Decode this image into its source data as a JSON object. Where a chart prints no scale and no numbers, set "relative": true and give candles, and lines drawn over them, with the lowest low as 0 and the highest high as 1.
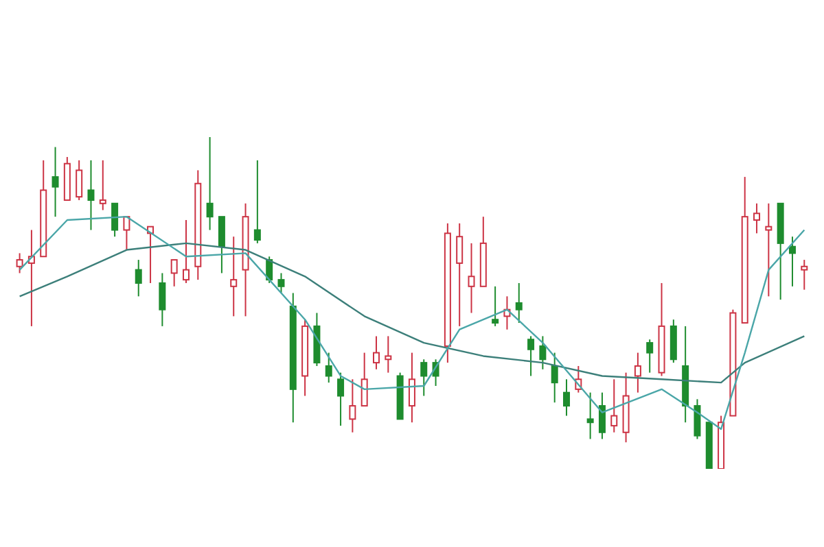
{
  "chart_data": {
    "type": "candlestick",
    "relative": true,
    "categories": [
      null,
      null,
      null,
      null,
      null,
      null,
      null,
      null,
      null,
      null,
      null,
      null,
      null,
      null,
      null,
      null,
      null,
      null,
      null,
      null,
      null,
      null,
      null,
      null,
      null,
      null,
      null,
      null,
      null,
      null,
      null,
      null,
      null,
      null,
      null,
      null,
      null,
      null,
      null,
      null,
      null,
      null,
      null,
      null,
      null,
      null,
      null,
      null,
      null,
      null,
      null,
      null,
      null,
      null,
      null,
      null,
      null,
      null,
      null,
      null,
      null,
      null,
      null,
      null,
      null,
      null,
      null
    ],
    "ohlc": [
      [
        0.61,
        0.65,
        0.59,
        0.63
      ],
      [
        0.62,
        0.72,
        0.43,
        0.64
      ],
      [
        0.64,
        0.93,
        0.64,
        0.84
      ],
      [
        0.88,
        0.97,
        0.76,
        0.85
      ],
      [
        0.81,
        0.94,
        0.81,
        0.92
      ],
      [
        0.82,
        0.93,
        0.81,
        0.9
      ],
      [
        0.84,
        0.93,
        0.72,
        0.81
      ],
      [
        0.8,
        0.93,
        0.78,
        0.81
      ],
      [
        0.8,
        0.8,
        0.7,
        0.72
      ],
      [
        0.72,
        0.76,
        0.66,
        0.76
      ],
      [
        0.6,
        0.63,
        0.52,
        0.56
      ],
      [
        0.71,
        0.73,
        0.56,
        0.73
      ],
      [
        0.56,
        0.59,
        0.43,
        0.48
      ],
      [
        0.59,
        0.63,
        0.55,
        0.63
      ],
      [
        0.57,
        0.75,
        0.56,
        0.6
      ],
      [
        0.61,
        0.9,
        0.57,
        0.86
      ],
      [
        0.8,
        1.0,
        0.72,
        0.76
      ],
      [
        0.76,
        0.76,
        0.59,
        0.67
      ],
      [
        0.55,
        0.7,
        0.46,
        0.57
      ],
      [
        0.6,
        0.8,
        0.46,
        0.76
      ],
      [
        0.72,
        0.93,
        0.68,
        0.69
      ],
      [
        0.63,
        0.64,
        0.56,
        0.57
      ],
      [
        0.57,
        0.59,
        0.53,
        0.55
      ],
      [
        0.49,
        0.53,
        0.14,
        0.24
      ],
      [
        0.28,
        0.45,
        0.22,
        0.43
      ],
      [
        0.43,
        0.47,
        0.31,
        0.32
      ],
      [
        0.31,
        0.35,
        0.26,
        0.28
      ],
      [
        0.27,
        0.29,
        0.13,
        0.22
      ],
      [
        0.15,
        0.27,
        0.11,
        0.19
      ],
      [
        0.19,
        0.35,
        0.19,
        0.27
      ],
      [
        0.32,
        0.4,
        0.3,
        0.35
      ],
      [
        0.33,
        0.4,
        0.29,
        0.34
      ],
      [
        0.28,
        0.29,
        0.15,
        0.15
      ],
      [
        0.19,
        0.35,
        0.14,
        0.27
      ],
      [
        0.32,
        0.33,
        0.22,
        0.28
      ],
      [
        0.32,
        0.33,
        0.25,
        0.28
      ],
      [
        0.37,
        0.74,
        0.32,
        0.71
      ],
      [
        0.62,
        0.74,
        0.43,
        0.7
      ],
      [
        0.55,
        0.68,
        0.47,
        0.58
      ],
      [
        0.55,
        0.76,
        0.55,
        0.68
      ],
      [
        0.45,
        0.55,
        0.43,
        0.44
      ],
      [
        0.46,
        0.52,
        0.42,
        0.48
      ],
      [
        0.5,
        0.56,
        0.44,
        0.48
      ],
      [
        0.39,
        0.4,
        0.28,
        0.36
      ],
      [
        0.37,
        0.4,
        0.3,
        0.33
      ],
      [
        0.31,
        0.35,
        0.2,
        0.26
      ],
      [
        0.23,
        0.27,
        0.16,
        0.19
      ],
      [
        0.24,
        0.31,
        0.23,
        0.27
      ],
      [
        0.15,
        0.23,
        0.09,
        0.14
      ],
      [
        0.19,
        0.23,
        0.09,
        0.11
      ],
      [
        0.13,
        0.27,
        0.11,
        0.16
      ],
      [
        0.11,
        0.29,
        0.08,
        0.22
      ],
      [
        0.28,
        0.35,
        0.23,
        0.31
      ],
      [
        0.38,
        0.39,
        0.29,
        0.35
      ],
      [
        0.29,
        0.56,
        0.28,
        0.43
      ],
      [
        0.43,
        0.45,
        0.32,
        0.33
      ],
      [
        0.31,
        0.43,
        0.14,
        0.19
      ],
      [
        0.19,
        0.21,
        0.09,
        0.1
      ],
      [
        0.14,
        0.14,
        0.0,
        0.0
      ],
      [
        0.0,
        0.16,
        0.0,
        0.14
      ],
      [
        0.16,
        0.48,
        0.16,
        0.47
      ],
      [
        0.44,
        0.88,
        0.44,
        0.76
      ],
      [
        0.75,
        0.8,
        0.71,
        0.77
      ],
      [
        0.72,
        0.8,
        0.52,
        0.73
      ],
      [
        0.8,
        0.8,
        0.51,
        0.68
      ],
      [
        0.67,
        0.7,
        0.55,
        0.65
      ],
      [
        0.6,
        0.63,
        0.54,
        0.61
      ]
    ],
    "colors": [
      "#cc3344",
      "#cc3344",
      "#cc3344",
      "#1e8c2e",
      "#cc3344",
      "#cc3344",
      "#1e8c2e",
      "#cc3344",
      "#1e8c2e",
      "#cc3344",
      "#1e8c2e",
      "#cc3344",
      "#1e8c2e",
      "#cc3344",
      "#cc3344",
      "#cc3344",
      "#1e8c2e",
      "#1e8c2e",
      "#cc3344",
      "#cc3344",
      "#1e8c2e",
      "#1e8c2e",
      "#1e8c2e",
      "#1e8c2e",
      "#cc3344",
      "#1e8c2e",
      "#1e8c2e",
      "#1e8c2e",
      "#cc3344",
      "#cc3344",
      "#cc3344",
      "#cc3344",
      "#1e8c2e",
      "#cc3344",
      "#1e8c2e",
      "#1e8c2e",
      "#cc3344",
      "#cc3344",
      "#cc3344",
      "#cc3344",
      "#1e8c2e",
      "#cc3344",
      "#1e8c2e",
      "#1e8c2e",
      "#1e8c2e",
      "#1e8c2e",
      "#1e8c2e",
      "#cc3344",
      "#1e8c2e",
      "#1e8c2e",
      "#cc3344",
      "#cc3344",
      "#cc3344",
      "#1e8c2e",
      "#cc3344",
      "#1e8c2e",
      "#1e8c2e",
      "#1e8c2e",
      "#1e8c2e",
      "#cc3344",
      "#cc3344",
      "#cc3344",
      "#cc3344",
      "#cc3344",
      "#1e8c2e",
      "#1e8c2e",
      "#cc3344"
    ],
    "series": [
      {
        "type": "line",
        "color": "#3c7f7a",
        "values": [
          0.52,
          null,
          null,
          null,
          0.58,
          null,
          null,
          null,
          null,
          0.66,
          null,
          null,
          null,
          null,
          0.68,
          null,
          null,
          null,
          null,
          0.66,
          null,
          null,
          null,
          null,
          0.58,
          null,
          null,
          null,
          null,
          0.46,
          null,
          null,
          null,
          null,
          0.38,
          null,
          null,
          null,
          null,
          0.34,
          null,
          null,
          null,
          null,
          0.32,
          null,
          null,
          null,
          null,
          0.28,
          null,
          null,
          null,
          null,
          0.27,
          null,
          null,
          null,
          null,
          0.26,
          null,
          0.32,
          null,
          null,
          null,
          null,
          0.4
        ]
      },
      {
        "type": "line",
        "color": "#4aa6a8",
        "values": [
          0.6,
          null,
          null,
          null,
          0.75,
          null,
          null,
          null,
          null,
          0.76,
          null,
          null,
          null,
          null,
          0.64,
          null,
          null,
          null,
          null,
          0.65,
          null,
          null,
          null,
          null,
          0.45,
          null,
          null,
          0.28,
          null,
          0.24,
          null,
          null,
          null,
          null,
          0.25,
          null,
          null,
          0.42,
          null,
          null,
          null,
          0.48,
          null,
          null,
          0.38,
          null,
          null,
          null,
          null,
          0.17,
          null,
          null,
          null,
          null,
          0.24,
          null,
          null,
          0.17,
          null,
          0.12,
          null,
          0.35,
          null,
          0.6,
          null,
          null,
          0.72
        ]
      }
    ]
  }
}
